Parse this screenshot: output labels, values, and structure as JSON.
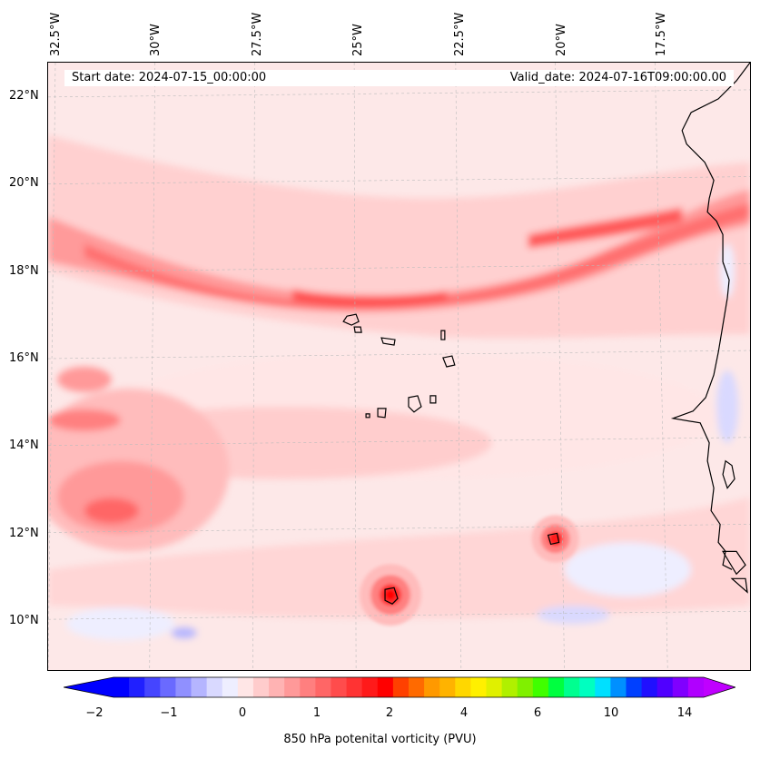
{
  "map": {
    "start_date": "Start date: 2024-07-15_00:00:00",
    "valid_date": "Valid_date: 2024-07-16T09:00:00.00",
    "lon_labels": [
      "32.5°W",
      "30°W",
      "27.5°W",
      "25°W",
      "22.5°W",
      "20°W",
      "17.5°W"
    ],
    "lat_labels": [
      "22°N",
      "20°N",
      "18°N",
      "16°N",
      "14°N",
      "12°N",
      "10°N"
    ],
    "colors": {
      "land_coast": "#000000",
      "background_pv": "#fde8e8"
    }
  },
  "colorbar": {
    "label": "850 hPa potenital vorticity (PVU)",
    "ticks": [
      "−2",
      "−1",
      "0",
      "1",
      "2",
      "4",
      "6",
      "10",
      "14"
    ],
    "colors": [
      "#0000ff",
      "#2020ff",
      "#4545ff",
      "#6a6aff",
      "#9090ff",
      "#b5b5ff",
      "#d9d9ff",
      "#eeeeff",
      "#ffe6e6",
      "#ffcccc",
      "#ffb3b3",
      "#ff9999",
      "#ff7f7f",
      "#ff6666",
      "#ff4c4c",
      "#ff3333",
      "#ff1a1a",
      "#ff0000",
      "#ff4000",
      "#ff6a00",
      "#ff9900",
      "#ffb300",
      "#ffd700",
      "#fff000",
      "#e0f000",
      "#b0f000",
      "#80f000",
      "#40ff00",
      "#00ff40",
      "#00ff90",
      "#00ffc0",
      "#00e0ff",
      "#0090ff",
      "#0040ff",
      "#2010ff",
      "#5000ff",
      "#8000ff",
      "#b000ff"
    ]
  }
}
